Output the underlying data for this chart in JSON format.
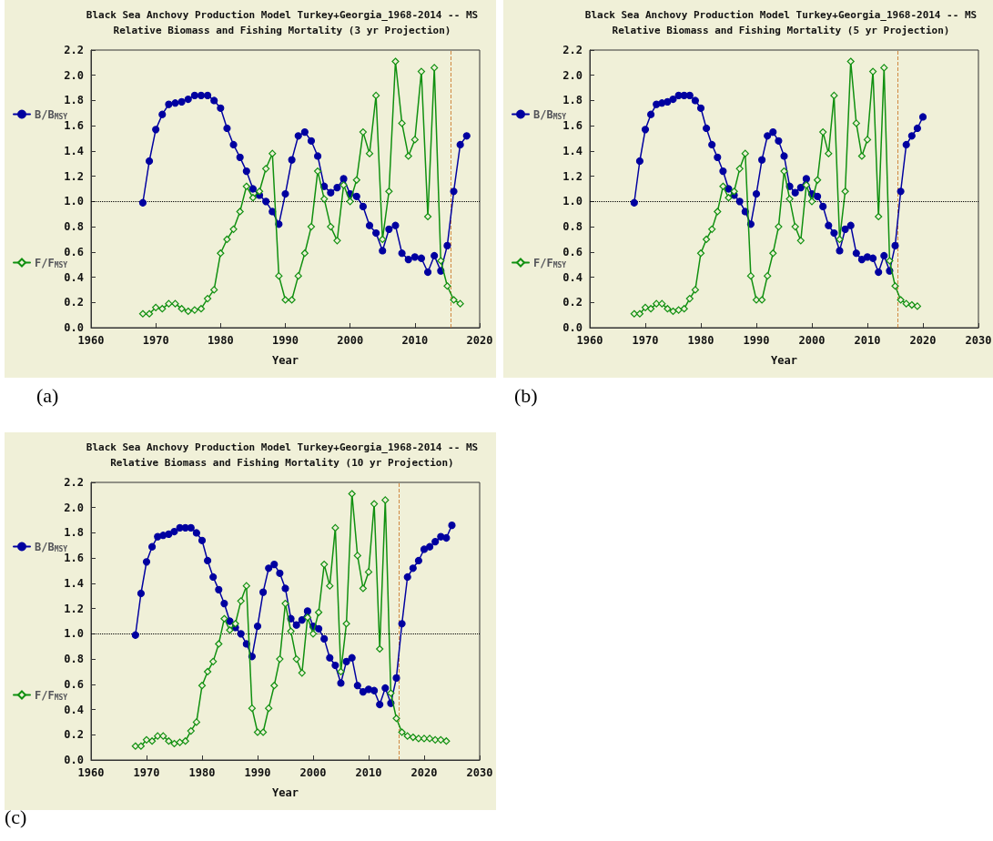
{
  "chart_data": [
    {
      "type": "line",
      "title": "Black Sea Anchovy Production Model Turkey+Georgia_1968-2014 -- MS",
      "subtitle": "Relative Biomass and Fishing Mortality (3 yr Projection)",
      "xlabel": "Year",
      "annotations": [
        "(a)"
      ],
      "legend": "left",
      "grid": false,
      "xlim": [
        1960,
        2020
      ],
      "xticks": [
        1960,
        1970,
        1980,
        1990,
        2000,
        2010,
        2020
      ],
      "ylim": [
        0,
        2.2
      ],
      "yticks": [
        {
          "value": 0,
          "label": "0.0"
        },
        {
          "value": 0.2,
          "label": "0.2"
        },
        {
          "value": 0.4,
          "label": "0.4"
        },
        {
          "value": 0.6,
          "label": "0.6"
        },
        {
          "value": 0.8,
          "label": "0.8"
        },
        {
          "value": 1,
          "label": "1.0"
        },
        {
          "value": 1.2,
          "label": "1.2"
        },
        {
          "value": 1.4,
          "label": "1.4"
        },
        {
          "value": 1.6,
          "label": "1.6"
        },
        {
          "value": 1.8,
          "label": "1.8"
        },
        {
          "value": 2,
          "label": "2.0"
        },
        {
          "value": 2.2,
          "label": "2.2"
        }
      ],
      "ref_lines": [
        {
          "axis": "y",
          "value": 1,
          "color": "#000000",
          "line_style": "dotted"
        },
        {
          "axis": "x",
          "value": 2015.5,
          "color": "#d08840",
          "line_style": "dashed"
        }
      ],
      "series": [
        {
          "name": "F/F$_{MSY}$",
          "color": "#109010",
          "marker": "diamond",
          "x": [
            1968,
            1969,
            1970,
            1971,
            1972,
            1973,
            1974,
            1975,
            1976,
            1977,
            1978,
            1979,
            1980,
            1981,
            1982,
            1983,
            1984,
            1985,
            1986,
            1987,
            1988,
            1989,
            1990,
            1991,
            1992,
            1993,
            1994,
            1995,
            1996,
            1997,
            1998,
            1999,
            2000,
            2001,
            2002,
            2003,
            2004,
            2005,
            2006,
            2007,
            2008,
            2009,
            2010,
            2011,
            2012,
            2013,
            2014,
            2015,
            2016,
            2017
          ],
          "values": [
            0.11,
            0.11,
            0.16,
            0.15,
            0.19,
            0.19,
            0.15,
            0.13,
            0.14,
            0.15,
            0.23,
            0.3,
            0.59,
            0.7,
            0.78,
            0.92,
            1.12,
            1.03,
            1.08,
            1.26,
            1.38,
            0.41,
            0.22,
            0.22,
            0.41,
            0.59,
            0.8,
            1.24,
            1.02,
            0.8,
            0.69,
            1.13,
            1.0,
            1.17,
            1.55,
            1.38,
            1.84,
            0.7,
            1.08,
            2.11,
            1.62,
            1.36,
            1.49,
            2.03,
            0.88,
            2.06,
            0.53,
            0.33,
            0.22,
            0.19
          ]
        },
        {
          "name": "B/B$_{MSY}$",
          "color": "#0000a0",
          "marker": "circle",
          "x": [
            1968,
            1969,
            1970,
            1971,
            1972,
            1973,
            1974,
            1975,
            1976,
            1977,
            1978,
            1979,
            1980,
            1981,
            1982,
            1983,
            1984,
            1985,
            1986,
            1987,
            1988,
            1989,
            1990,
            1991,
            1992,
            1993,
            1994,
            1995,
            1996,
            1997,
            1998,
            1999,
            2000,
            2001,
            2002,
            2003,
            2004,
            2005,
            2006,
            2007,
            2008,
            2009,
            2010,
            2011,
            2012,
            2013,
            2014,
            2015,
            2016,
            2017,
            2018
          ],
          "values": [
            0.99,
            1.32,
            1.57,
            1.69,
            1.77,
            1.78,
            1.79,
            1.81,
            1.84,
            1.84,
            1.84,
            1.8,
            1.74,
            1.58,
            1.45,
            1.35,
            1.24,
            1.1,
            1.05,
            1.0,
            0.92,
            0.82,
            1.06,
            1.33,
            1.52,
            1.55,
            1.48,
            1.36,
            1.12,
            1.07,
            1.11,
            1.18,
            1.06,
            1.04,
            0.96,
            0.81,
            0.75,
            0.61,
            0.78,
            0.81,
            0.59,
            0.54,
            0.56,
            0.55,
            0.44,
            0.57,
            0.45,
            0.65,
            1.08,
            1.45,
            1.52
          ]
        }
      ]
    },
    {
      "type": "line",
      "title": "Black Sea Anchovy Production Model Turkey+Georgia_1968-2014 -- MS",
      "subtitle": "Relative Biomass and Fishing Mortality (5 yr Projection)",
      "xlabel": "Year",
      "annotations": [
        "(b)"
      ],
      "legend": "left",
      "grid": false,
      "xlim": [
        1960,
        2030
      ],
      "xticks": [
        1960,
        1970,
        1980,
        1990,
        2000,
        2010,
        2020,
        2030
      ],
      "ylim": [
        0,
        2.2
      ],
      "yticks": [
        {
          "value": 0,
          "label": "0.0"
        },
        {
          "value": 0.2,
          "label": "0.2"
        },
        {
          "value": 0.4,
          "label": "0.4"
        },
        {
          "value": 0.6,
          "label": "0.6"
        },
        {
          "value": 0.8,
          "label": "0.8"
        },
        {
          "value": 1,
          "label": "1.0"
        },
        {
          "value": 1.2,
          "label": "1.2"
        },
        {
          "value": 1.4,
          "label": "1.4"
        },
        {
          "value": 1.6,
          "label": "1.6"
        },
        {
          "value": 1.8,
          "label": "1.8"
        },
        {
          "value": 2,
          "label": "2.0"
        },
        {
          "value": 2.2,
          "label": "2.2"
        }
      ],
      "ref_lines": [
        {
          "axis": "y",
          "value": 1,
          "color": "#000000",
          "line_style": "dotted"
        },
        {
          "axis": "x",
          "value": 2015.5,
          "color": "#d08840",
          "line_style": "dashed"
        }
      ],
      "series": [
        {
          "name": "F/F$_{MSY}$",
          "color": "#109010",
          "marker": "diamond",
          "x": [
            1968,
            1969,
            1970,
            1971,
            1972,
            1973,
            1974,
            1975,
            1976,
            1977,
            1978,
            1979,
            1980,
            1981,
            1982,
            1983,
            1984,
            1985,
            1986,
            1987,
            1988,
            1989,
            1990,
            1991,
            1992,
            1993,
            1994,
            1995,
            1996,
            1997,
            1998,
            1999,
            2000,
            2001,
            2002,
            2003,
            2004,
            2005,
            2006,
            2007,
            2008,
            2009,
            2010,
            2011,
            2012,
            2013,
            2014,
            2015,
            2016,
            2017,
            2018,
            2019
          ],
          "values": [
            0.11,
            0.11,
            0.16,
            0.15,
            0.19,
            0.19,
            0.15,
            0.13,
            0.14,
            0.15,
            0.23,
            0.3,
            0.59,
            0.7,
            0.78,
            0.92,
            1.12,
            1.03,
            1.08,
            1.26,
            1.38,
            0.41,
            0.22,
            0.22,
            0.41,
            0.59,
            0.8,
            1.24,
            1.02,
            0.8,
            0.69,
            1.13,
            1.0,
            1.17,
            1.55,
            1.38,
            1.84,
            0.7,
            1.08,
            2.11,
            1.62,
            1.36,
            1.49,
            2.03,
            0.88,
            2.06,
            0.53,
            0.33,
            0.22,
            0.19,
            0.18,
            0.17
          ]
        },
        {
          "name": "B/B$_{MSY}$",
          "color": "#0000a0",
          "marker": "circle",
          "x": [
            1968,
            1969,
            1970,
            1971,
            1972,
            1973,
            1974,
            1975,
            1976,
            1977,
            1978,
            1979,
            1980,
            1981,
            1982,
            1983,
            1984,
            1985,
            1986,
            1987,
            1988,
            1989,
            1990,
            1991,
            1992,
            1993,
            1994,
            1995,
            1996,
            1997,
            1998,
            1999,
            2000,
            2001,
            2002,
            2003,
            2004,
            2005,
            2006,
            2007,
            2008,
            2009,
            2010,
            2011,
            2012,
            2013,
            2014,
            2015,
            2016,
            2017,
            2018,
            2019,
            2020
          ],
          "values": [
            0.99,
            1.32,
            1.57,
            1.69,
            1.77,
            1.78,
            1.79,
            1.81,
            1.84,
            1.84,
            1.84,
            1.8,
            1.74,
            1.58,
            1.45,
            1.35,
            1.24,
            1.1,
            1.05,
            1.0,
            0.92,
            0.82,
            1.06,
            1.33,
            1.52,
            1.55,
            1.48,
            1.36,
            1.12,
            1.07,
            1.11,
            1.18,
            1.06,
            1.04,
            0.96,
            0.81,
            0.75,
            0.61,
            0.78,
            0.81,
            0.59,
            0.54,
            0.56,
            0.55,
            0.44,
            0.57,
            0.45,
            0.65,
            1.08,
            1.45,
            1.52,
            1.58,
            1.67
          ]
        }
      ]
    },
    {
      "type": "line",
      "title": "Black Sea Anchovy Production Model Turkey+Georgia_1968-2014 -- MS",
      "subtitle": "Relative Biomass and Fishing Mortality (10 yr Projection)",
      "xlabel": "Year",
      "annotations": [
        "(c)"
      ],
      "legend": "left",
      "grid": false,
      "xlim": [
        1960,
        2030
      ],
      "xticks": [
        1960,
        1970,
        1980,
        1990,
        2000,
        2010,
        2020,
        2030
      ],
      "ylim": [
        0,
        2.2
      ],
      "yticks": [
        {
          "value": 0,
          "label": "0.0"
        },
        {
          "value": 0.2,
          "label": "0.2"
        },
        {
          "value": 0.4,
          "label": "0.4"
        },
        {
          "value": 0.6,
          "label": "0.6"
        },
        {
          "value": 0.8,
          "label": "0.8"
        },
        {
          "value": 1,
          "label": "1.0"
        },
        {
          "value": 1.2,
          "label": "1.2"
        },
        {
          "value": 1.4,
          "label": "1.4"
        },
        {
          "value": 1.6,
          "label": "1.6"
        },
        {
          "value": 1.8,
          "label": "1.8"
        },
        {
          "value": 2,
          "label": "2.0"
        },
        {
          "value": 2.2,
          "label": "2.2"
        }
      ],
      "ref_lines": [
        {
          "axis": "y",
          "value": 1,
          "color": "#000000",
          "line_style": "dotted"
        },
        {
          "axis": "x",
          "value": 2015.5,
          "color": "#d08840",
          "line_style": "dashed"
        }
      ],
      "series": [
        {
          "name": "F/F$_{MSY}$",
          "color": "#109010",
          "marker": "diamond",
          "x": [
            1968,
            1969,
            1970,
            1971,
            1972,
            1973,
            1974,
            1975,
            1976,
            1977,
            1978,
            1979,
            1980,
            1981,
            1982,
            1983,
            1984,
            1985,
            1986,
            1987,
            1988,
            1989,
            1990,
            1991,
            1992,
            1993,
            1994,
            1995,
            1996,
            1997,
            1998,
            1999,
            2000,
            2001,
            2002,
            2003,
            2004,
            2005,
            2006,
            2007,
            2008,
            2009,
            2010,
            2011,
            2012,
            2013,
            2014,
            2015,
            2016,
            2017,
            2018,
            2019,
            2020,
            2021,
            2022,
            2023,
            2024
          ],
          "values": [
            0.11,
            0.11,
            0.16,
            0.15,
            0.19,
            0.19,
            0.15,
            0.13,
            0.14,
            0.15,
            0.23,
            0.3,
            0.59,
            0.7,
            0.78,
            0.92,
            1.12,
            1.03,
            1.08,
            1.26,
            1.38,
            0.41,
            0.22,
            0.22,
            0.41,
            0.59,
            0.8,
            1.24,
            1.02,
            0.8,
            0.69,
            1.13,
            1.0,
            1.17,
            1.55,
            1.38,
            1.84,
            0.7,
            1.08,
            2.11,
            1.62,
            1.36,
            1.49,
            2.03,
            0.88,
            2.06,
            0.53,
            0.33,
            0.22,
            0.19,
            0.18,
            0.17,
            0.17,
            0.17,
            0.16,
            0.16,
            0.15
          ]
        },
        {
          "name": "B/B$_{MSY}$",
          "color": "#0000a0",
          "marker": "circle",
          "x": [
            1968,
            1969,
            1970,
            1971,
            1972,
            1973,
            1974,
            1975,
            1976,
            1977,
            1978,
            1979,
            1980,
            1981,
            1982,
            1983,
            1984,
            1985,
            1986,
            1987,
            1988,
            1989,
            1990,
            1991,
            1992,
            1993,
            1994,
            1995,
            1996,
            1997,
            1998,
            1999,
            2000,
            2001,
            2002,
            2003,
            2004,
            2005,
            2006,
            2007,
            2008,
            2009,
            2010,
            2011,
            2012,
            2013,
            2014,
            2015,
            2016,
            2017,
            2018,
            2019,
            2020,
            2021,
            2022,
            2023,
            2024,
            2025
          ],
          "values": [
            0.99,
            1.32,
            1.57,
            1.69,
            1.77,
            1.78,
            1.79,
            1.81,
            1.84,
            1.84,
            1.84,
            1.8,
            1.74,
            1.58,
            1.45,
            1.35,
            1.24,
            1.1,
            1.05,
            1.0,
            0.92,
            0.82,
            1.06,
            1.33,
            1.52,
            1.55,
            1.48,
            1.36,
            1.12,
            1.07,
            1.11,
            1.18,
            1.06,
            1.04,
            0.96,
            0.81,
            0.75,
            0.61,
            0.78,
            0.81,
            0.59,
            0.54,
            0.56,
            0.55,
            0.44,
            0.57,
            0.45,
            0.65,
            1.08,
            1.45,
            1.52,
            1.58,
            1.67,
            1.69,
            1.73,
            1.77,
            1.76,
            1.86
          ]
        }
      ]
    }
  ]
}
